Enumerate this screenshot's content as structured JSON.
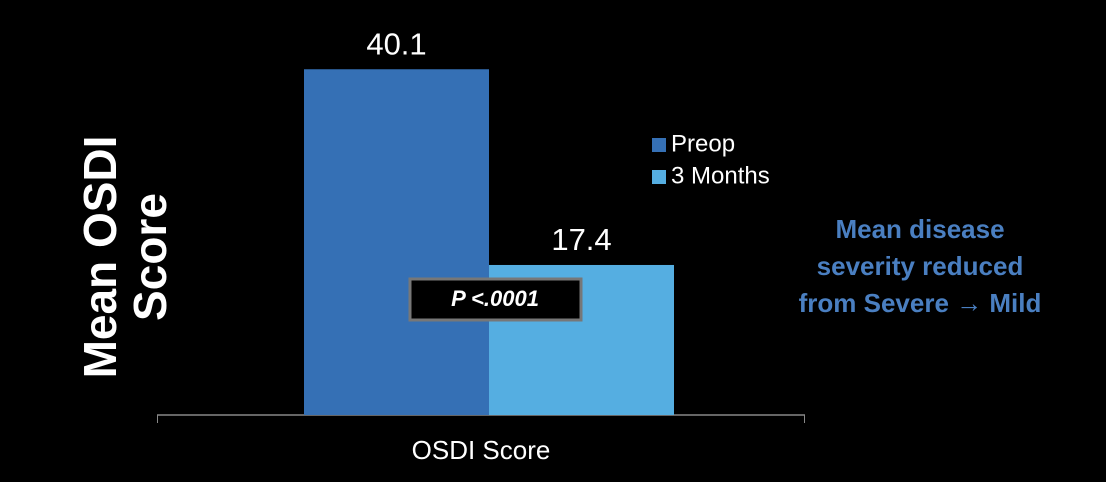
{
  "chart_data": {
    "type": "bar",
    "y_label": "Mean OSDI Score",
    "categories": [
      "OSDI Score"
    ],
    "series": [
      {
        "name": "Preop",
        "color": "#3570b5",
        "values": [
          40.1
        ]
      },
      {
        "name": "3 Months",
        "color": "#55aee1",
        "values": [
          17.4
        ]
      }
    ],
    "ylim": [
      0,
      45
    ],
    "annotation": "P <.0001",
    "note_lines": [
      "Mean disease",
      "severity reduced",
      "from Severe → Mild"
    ],
    "note_color": "#4a7fc1"
  }
}
